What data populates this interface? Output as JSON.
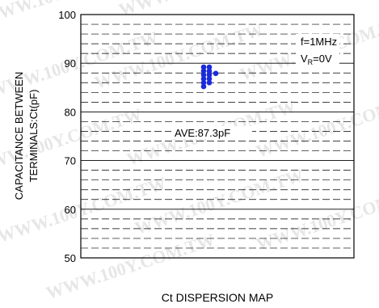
{
  "chart_data": {
    "type": "scatter",
    "xlabel": "Ct DISPERSION MAP",
    "ylabel_lines": [
      "CAPACITANCE BETWEEN",
      "TERMINALS:Ct(pF)"
    ],
    "ylim": [
      50,
      100
    ],
    "yticks": [
      50,
      60,
      70,
      80,
      90,
      100
    ],
    "grid": true,
    "minor_grid_step": 2,
    "conditions": {
      "freq": "f=1MHz",
      "vr_prefix": "V",
      "vr_sub": "R",
      "vr_suffix": "=0V"
    },
    "annotation": "AVE:87.3pF",
    "point_color": "#1a2adb",
    "points": [
      {
        "col": 0,
        "y": 89.2
      },
      {
        "col": 1,
        "y": 89.2
      },
      {
        "col": 0,
        "y": 88.4
      },
      {
        "col": 1,
        "y": 88.4
      },
      {
        "col": 0,
        "y": 87.6
      },
      {
        "col": 1,
        "y": 87.6
      },
      {
        "col": 2,
        "y": 87.9
      },
      {
        "col": 0,
        "y": 86.8
      },
      {
        "col": 1,
        "y": 86.8
      },
      {
        "col": 0,
        "y": 86.0
      },
      {
        "col": 1,
        "y": 86.0
      },
      {
        "col": 0,
        "y": 85.2
      }
    ],
    "watermark": "WWW.100Y.COM.TW"
  }
}
